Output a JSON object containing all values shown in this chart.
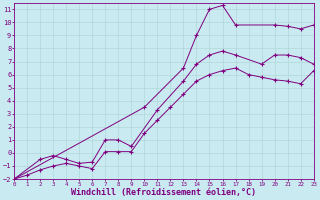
{
  "xlabel": "Windchill (Refroidissement éolien,°C)",
  "background_color": "#c8eaf0",
  "line_color": "#800080",
  "grid_color": "#b0d8d8",
  "xlim": [
    0,
    23
  ],
  "ylim": [
    -2,
    11.5
  ],
  "xticks": [
    0,
    1,
    2,
    3,
    4,
    5,
    6,
    7,
    8,
    9,
    10,
    11,
    12,
    13,
    14,
    15,
    16,
    17,
    18,
    19,
    20,
    21,
    22,
    23
  ],
  "yticks": [
    -2,
    -1,
    0,
    1,
    2,
    3,
    4,
    5,
    6,
    7,
    8,
    9,
    10,
    11
  ],
  "curve_top_x": [
    0,
    10,
    13,
    14,
    15,
    16,
    17,
    20,
    21,
    22,
    23
  ],
  "curve_top_y": [
    -2.0,
    3.5,
    6.5,
    9.0,
    11.0,
    11.3,
    9.8,
    9.8,
    9.7,
    9.5,
    9.8
  ],
  "curve_mid_x": [
    0,
    2,
    3,
    4,
    5,
    6,
    7,
    8,
    9,
    11,
    13,
    14,
    15,
    16,
    17,
    19,
    20,
    21,
    22,
    23
  ],
  "curve_mid_y": [
    -2.0,
    -0.5,
    -0.2,
    -0.5,
    -0.8,
    -0.7,
    1.0,
    1.0,
    0.5,
    3.3,
    5.5,
    6.8,
    7.5,
    7.8,
    7.5,
    6.8,
    7.5,
    7.5,
    7.3,
    6.8
  ],
  "curve_bot_x": [
    0,
    1,
    2,
    3,
    4,
    5,
    6,
    7,
    8,
    9,
    10,
    11,
    12,
    13,
    14,
    15,
    16,
    17,
    18,
    19,
    20,
    21,
    22,
    23
  ],
  "curve_bot_y": [
    -2.0,
    -1.7,
    -1.3,
    -1.0,
    -0.8,
    -1.0,
    -1.2,
    0.1,
    0.1,
    0.1,
    1.5,
    2.5,
    3.5,
    4.5,
    5.5,
    6.0,
    6.3,
    6.5,
    6.0,
    5.8,
    5.6,
    5.5,
    5.3,
    6.3
  ]
}
